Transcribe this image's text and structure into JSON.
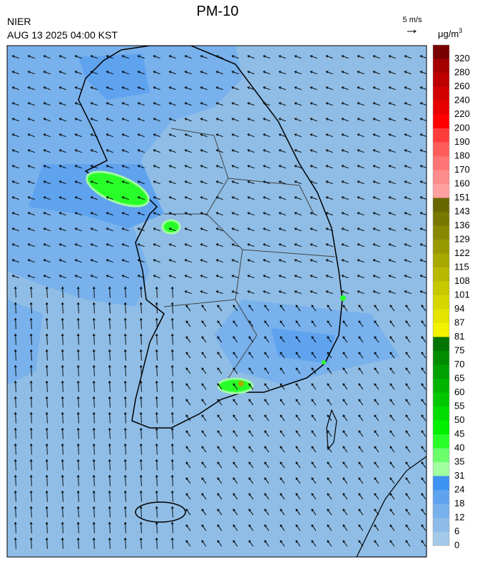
{
  "header": {
    "title": "PM-10",
    "source": "NIER",
    "time": "AUG 13 2025 04:00 KST",
    "wind_scale": "5 m/s",
    "unit": "μg/m",
    "unit_sup": "3"
  },
  "colorbar": {
    "ticks": [
      0,
      6,
      12,
      18,
      24,
      31,
      35,
      40,
      45,
      50,
      55,
      60,
      65,
      70,
      75,
      81,
      87,
      94,
      101,
      108,
      115,
      122,
      129,
      136,
      143,
      151,
      160,
      170,
      180,
      190,
      200,
      220,
      240,
      260,
      280,
      320
    ],
    "colors": [
      "#a4c9e8",
      "#8dbce9",
      "#78b1ec",
      "#5fa3ef",
      "#3d92f2",
      "#a0ffa0",
      "#6cff6c",
      "#28ff28",
      "#00f000",
      "#00dc00",
      "#00c800",
      "#00b400",
      "#00a000",
      "#008c00",
      "#007400",
      "#f2f200",
      "#e4e400",
      "#d6d600",
      "#c8c800",
      "#b8b800",
      "#a8a800",
      "#989800",
      "#888800",
      "#787800",
      "#686800",
      "#ffa0a0",
      "#ff8c8c",
      "#ff7474",
      "#ff5c5c",
      "#ff3c3c",
      "#ff0000",
      "#e80000",
      "#d20000",
      "#bc0000",
      "#a40000",
      "#780000"
    ]
  }
}
